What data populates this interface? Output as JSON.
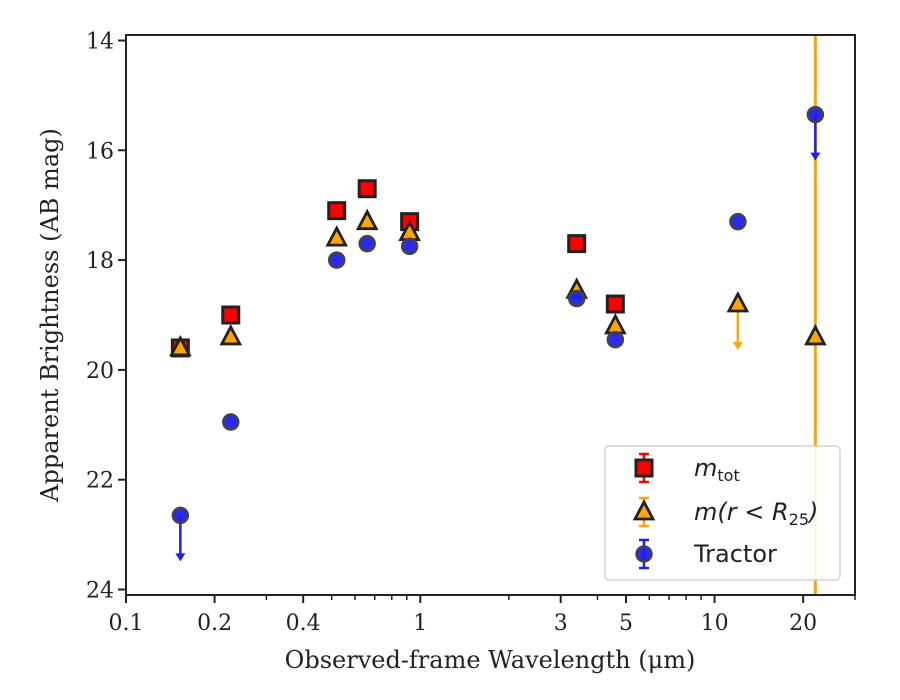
{
  "chart_data": {
    "type": "scatter",
    "xlabel": "Observed-frame Wavelength (μm)",
    "ylabel": "Apparent Brightness (AB mag)",
    "xscale": "log",
    "xlim": [
      0.1,
      30
    ],
    "ylim": [
      24.1,
      13.9
    ],
    "y_inverted": true,
    "grid": false,
    "legend_position": "lower-right",
    "x_ticks": [
      0.1,
      0.2,
      0.4,
      1,
      3,
      5,
      10,
      20
    ],
    "x_tick_labels": [
      "0.1",
      "0.2",
      "0.4",
      "1",
      "3",
      "5",
      "10",
      "20"
    ],
    "y_ticks": [
      14,
      16,
      18,
      20,
      22,
      24
    ],
    "y_tick_labels": [
      "14",
      "16",
      "18",
      "20",
      "22",
      "24"
    ],
    "colors": {
      "m_tot": "#ff0000",
      "m_r25": "#ffa500",
      "tractor": "#1f1fee",
      "edge": "#222222",
      "vline": "#ffa500"
    },
    "series": [
      {
        "name": "m_tot",
        "marker": "square",
        "points": [
          {
            "x": 0.153,
            "y": 19.6
          },
          {
            "x": 0.227,
            "y": 19.0
          },
          {
            "x": 0.52,
            "y": 17.1
          },
          {
            "x": 0.66,
            "y": 16.7
          },
          {
            "x": 0.92,
            "y": 17.3
          },
          {
            "x": 3.4,
            "y": 17.7
          },
          {
            "x": 4.6,
            "y": 18.8
          }
        ]
      },
      {
        "name": "m(r < R25)",
        "marker": "triangle",
        "points": [
          {
            "x": 0.153,
            "y": 19.6
          },
          {
            "x": 0.227,
            "y": 19.4
          },
          {
            "x": 0.52,
            "y": 17.6
          },
          {
            "x": 0.66,
            "y": 17.3
          },
          {
            "x": 0.92,
            "y": 17.5
          },
          {
            "x": 3.4,
            "y": 18.55
          },
          {
            "x": 4.6,
            "y": 19.2
          },
          {
            "x": 12.0,
            "y": 18.8,
            "upper_limit": true
          },
          {
            "x": 22.0,
            "y": 19.4
          }
        ]
      },
      {
        "name": "Tractor",
        "marker": "circle",
        "points": [
          {
            "x": 0.153,
            "y": 22.65,
            "upper_limit": true
          },
          {
            "x": 0.227,
            "y": 20.95
          },
          {
            "x": 0.52,
            "y": 18.0
          },
          {
            "x": 0.66,
            "y": 17.7
          },
          {
            "x": 0.92,
            "y": 17.75
          },
          {
            "x": 3.4,
            "y": 18.7
          },
          {
            "x": 4.6,
            "y": 19.45
          },
          {
            "x": 12.0,
            "y": 17.3
          },
          {
            "x": 22.0,
            "y": 15.35,
            "upper_limit": true
          }
        ]
      }
    ],
    "vertical_lines": [
      {
        "x": 22.0
      }
    ],
    "legend": [
      {
        "series": "m_tot",
        "label_main": "m",
        "label_sub": "tot",
        "label_tail": ""
      },
      {
        "series": "m(r < R25)",
        "label_main": "m(r < R",
        "label_sub": "25",
        "label_tail": ")"
      },
      {
        "series": "Tractor",
        "label_main": "Tractor",
        "label_sub": "",
        "label_tail": ""
      }
    ]
  }
}
